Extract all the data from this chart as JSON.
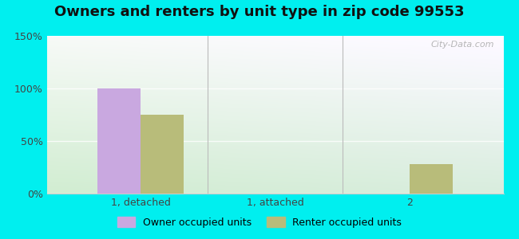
{
  "title": "Owners and renters by unit type in zip code 99553",
  "categories": [
    "1, detached",
    "1, attached",
    "2"
  ],
  "owner_values": [
    100,
    0,
    0
  ],
  "renter_values": [
    75,
    0,
    28
  ],
  "owner_color": "#c9a8e0",
  "renter_color": "#b8bc7a",
  "ylim": [
    0,
    150
  ],
  "yticks": [
    0,
    50,
    100,
    150
  ],
  "yticklabels": [
    "0%",
    "50%",
    "100%",
    "150%"
  ],
  "legend_owner": "Owner occupied units",
  "legend_renter": "Renter occupied units",
  "bg_outer": "#00EFEF",
  "bar_width": 0.32,
  "title_fontsize": 13,
  "watermark": "City-Data.com"
}
